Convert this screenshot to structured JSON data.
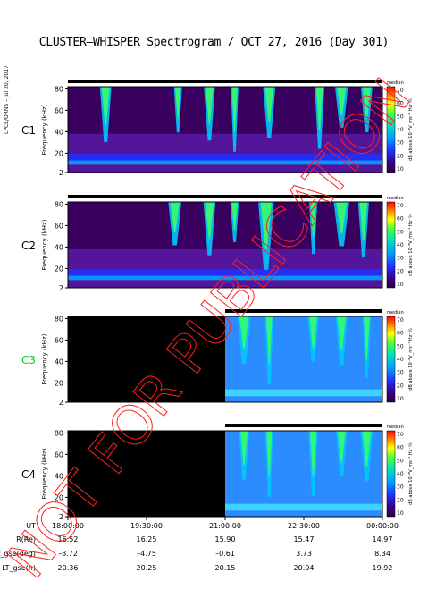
{
  "title": "CLUSTER–WHISPER Spectrogram / OCT 27, 2016 (Day 301)",
  "side_label": "LPCE/ORNS – Jul 20, 2017",
  "watermark": "NOT FOR PUBLICATION",
  "colorbar": {
    "label": "dB above 10⁻⁸V_ms⁻¹ Hz⁻½",
    "ticks": [
      "70",
      "60",
      "50",
      "40",
      "30",
      "20",
      "10"
    ],
    "corner": "median"
  },
  "panels": [
    {
      "id": "C1",
      "color": "#000000"
    },
    {
      "id": "C2",
      "color": "#000000"
    },
    {
      "id": "C3",
      "color": "#00cc33"
    },
    {
      "id": "C4",
      "color": "#000000"
    }
  ],
  "x_axis": {
    "label": "UT",
    "ticks": [
      "18:00:00",
      "19:30:00",
      "21:00:00",
      "22:30:00",
      "00:00:00"
    ]
  },
  "ephemeris": [
    {
      "label": "R(Re)",
      "values": [
        "16.52",
        "16.25",
        "15.90",
        "15.47",
        "14.97"
      ]
    },
    {
      "label": "Lat_gse(deg)",
      "values": [
        "–8.72",
        "–4.75",
        "–0.61",
        "3.73",
        "8.34"
      ]
    },
    {
      "label": "LT_gse(h)",
      "values": [
        "20.36",
        "20.25",
        "20.15",
        "20.04",
        "19.92"
      ]
    }
  ],
  "chart_data": {
    "type": "heatmap",
    "title": "CLUSTER–WHISPER Spectrogram / OCT 27, 2016 (Day 301)",
    "xlabel": "UT",
    "ylabel": "Frequency (kHz)",
    "x_ticks": [
      "18:00:00",
      "19:30:00",
      "21:00:00",
      "22:30:00",
      "00:00:00"
    ],
    "y_ticks": [
      2,
      20,
      40,
      60,
      80
    ],
    "ylim": [
      2,
      82
    ],
    "color_scale": {
      "label": "dB above 10⁻⁸V_ms⁻¹ Hz⁻½",
      "range": [
        10,
        70
      ]
    },
    "panels": [
      {
        "name": "C1",
        "data_start": "18:00:00"
      },
      {
        "name": "C2",
        "data_start": "18:00:00"
      },
      {
        "name": "C3",
        "data_start": "21:00:00"
      },
      {
        "name": "C4",
        "data_start": "21:00:00"
      }
    ]
  }
}
